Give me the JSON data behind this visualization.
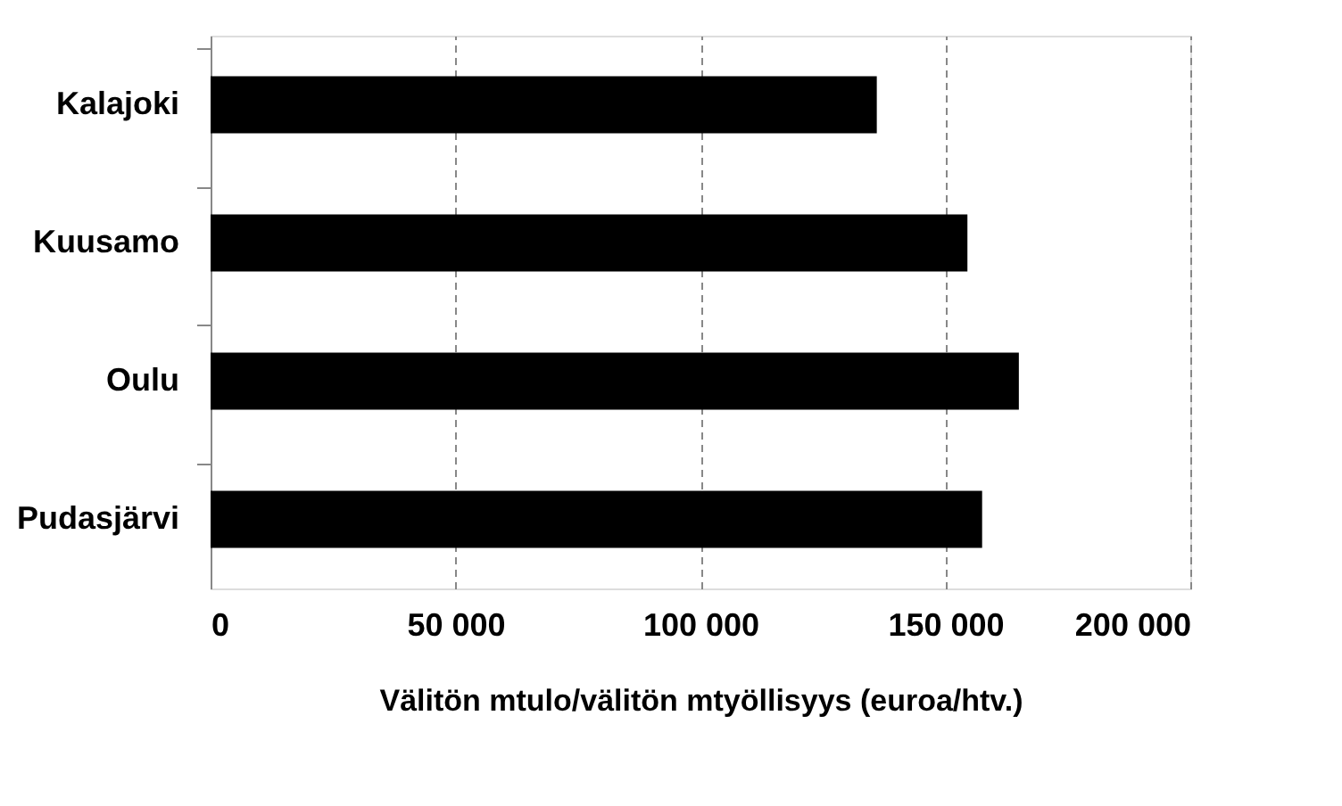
{
  "chart_data": {
    "type": "bar",
    "orientation": "horizontal",
    "categories": [
      "Kalajoki",
      "Kuusamo",
      "Oulu",
      "Pudasjärvi"
    ],
    "values": [
      136000,
      154500,
      165000,
      157500
    ],
    "color": "#000000",
    "xlabel": "Välitön mtulo/välitön mtyöllisyys (euroa/htv.)",
    "xlim": [
      0,
      200000
    ],
    "xticks": [
      0,
      {
        "value": 50000,
        "label": "50 000"
      },
      {
        "value": 100000,
        "label": "100 000"
      },
      {
        "value": 150000,
        "label": "150 000"
      },
      {
        "value": 200000,
        "label": "200 000"
      }
    ],
    "grid": "x"
  }
}
